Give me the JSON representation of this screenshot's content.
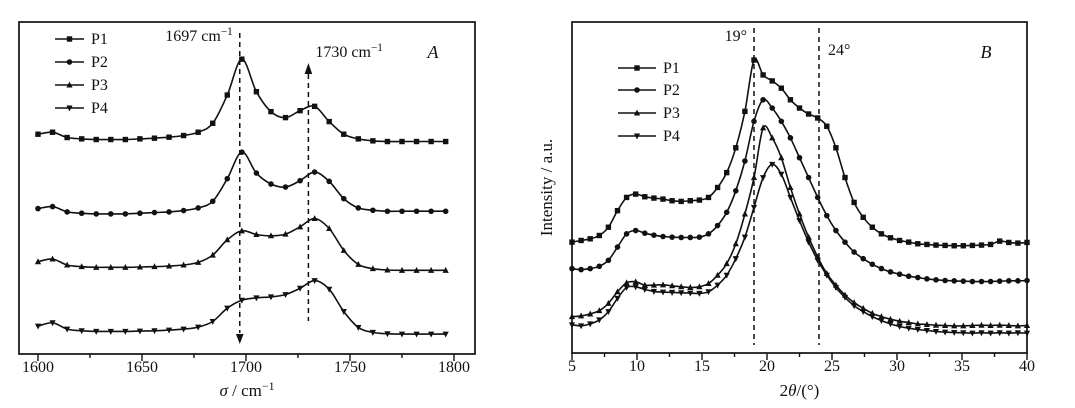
{
  "figure": {
    "background": "#ffffff",
    "ink": "#111111"
  },
  "chart_data": [
    {
      "type": "line",
      "panel_label": "A",
      "title": "",
      "xlabel_segments": [
        {
          "t": "σ",
          "italic": true
        },
        {
          "t": " / cm"
        },
        {
          "t": "−1",
          "sup": true
        }
      ],
      "ylabel_segments": [],
      "x_min": 1600,
      "x_max": 1800,
      "x_major_tick_values": [
        1600,
        1650,
        1700,
        1750,
        1800
      ],
      "x_major_tick_labels": [
        "1600",
        "1650",
        "1700",
        "1750",
        "1800"
      ],
      "x_minor_tick_values": [
        1625,
        1675,
        1725,
        1775
      ],
      "y_axis_visible_ticks": "none (intensity in arbitrary units, curves vertically offset)",
      "legend_position": "top-left-inside",
      "grid": false,
      "legend": [
        {
          "label": "P1",
          "marker": "square"
        },
        {
          "label": "P2",
          "marker": "circle"
        },
        {
          "label": "P3",
          "marker": "triangle-up"
        },
        {
          "label": "P4",
          "marker": "triangle-down"
        }
      ],
      "annotations": [
        {
          "x": 1697,
          "segments": [
            {
              "t": "1697 cm"
            },
            {
              "t": "−1",
              "sup": true
            }
          ],
          "arrow": "down",
          "label_side": "left"
        },
        {
          "x": 1730,
          "segments": [
            {
              "t": "1730 cm"
            },
            {
              "t": "−1",
              "sup": true
            }
          ],
          "arrow": "up",
          "label_side": "right"
        }
      ],
      "series": [
        {
          "name": "P1",
          "marker": "square",
          "x_start": 1600,
          "x_step": 7,
          "y": [
            0.662,
            0.668,
            0.652,
            0.648,
            0.646,
            0.646,
            0.646,
            0.648,
            0.65,
            0.653,
            0.658,
            0.668,
            0.695,
            0.78,
            0.888,
            0.79,
            0.73,
            0.712,
            0.733,
            0.746,
            0.7,
            0.662,
            0.648,
            0.642,
            0.64,
            0.64,
            0.64,
            0.64,
            0.64
          ]
        },
        {
          "name": "P2",
          "marker": "circle",
          "x_start": 1600,
          "x_step": 7,
          "y": [
            0.438,
            0.444,
            0.428,
            0.424,
            0.422,
            0.422,
            0.422,
            0.424,
            0.426,
            0.428,
            0.432,
            0.44,
            0.46,
            0.528,
            0.608,
            0.545,
            0.512,
            0.503,
            0.522,
            0.548,
            0.52,
            0.468,
            0.44,
            0.433,
            0.43,
            0.43,
            0.43,
            0.43,
            0.43
          ]
        },
        {
          "name": "P3",
          "marker": "triangle-up",
          "x_start": 1600,
          "x_step": 7,
          "y": [
            0.278,
            0.286,
            0.268,
            0.263,
            0.261,
            0.261,
            0.261,
            0.262,
            0.263,
            0.265,
            0.268,
            0.276,
            0.298,
            0.344,
            0.371,
            0.36,
            0.356,
            0.361,
            0.383,
            0.408,
            0.378,
            0.312,
            0.27,
            0.257,
            0.253,
            0.252,
            0.252,
            0.252,
            0.252
          ]
        },
        {
          "name": "P4",
          "marker": "triangle-down",
          "x_start": 1600,
          "x_step": 7,
          "y": [
            0.084,
            0.094,
            0.075,
            0.07,
            0.068,
            0.068,
            0.068,
            0.069,
            0.07,
            0.072,
            0.075,
            0.081,
            0.098,
            0.138,
            0.162,
            0.169,
            0.172,
            0.179,
            0.198,
            0.221,
            0.195,
            0.128,
            0.08,
            0.065,
            0.061,
            0.06,
            0.06,
            0.06,
            0.06
          ]
        }
      ]
    },
    {
      "type": "line",
      "panel_label": "B",
      "title": "",
      "xlabel_segments": [
        {
          "t": "2"
        },
        {
          "t": "θ",
          "italic": true
        },
        {
          "t": "/(°)"
        }
      ],
      "ylabel_segments": [
        {
          "t": "Intensity / a.u."
        }
      ],
      "x_min": 5,
      "x_max": 40,
      "x_major_tick_values": [
        5,
        10,
        15,
        20,
        25,
        30,
        35,
        40
      ],
      "x_major_tick_labels": [
        "5",
        "10",
        "15",
        "20",
        "25",
        "30",
        "35",
        "40"
      ],
      "x_minor_tick_values": [
        7.5,
        12.5,
        17.5,
        22.5,
        27.5,
        32.5,
        37.5
      ],
      "y_axis_visible_ticks": "none (intensity in arbitrary units, curves vertically offset)",
      "legend_position": "upper-left-inside",
      "grid": false,
      "legend": [
        {
          "label": "P1",
          "marker": "square"
        },
        {
          "label": "P2",
          "marker": "circle"
        },
        {
          "label": "P3",
          "marker": "triangle-up"
        },
        {
          "label": "P4",
          "marker": "triangle-down"
        }
      ],
      "annotations": [
        {
          "x": 19,
          "segments": [
            {
              "t": "19°"
            }
          ],
          "arrow": "none",
          "label_side": "left"
        },
        {
          "x": 24,
          "segments": [
            {
              "t": "24°"
            }
          ],
          "arrow": "none",
          "label_side": "right"
        }
      ],
      "series": [
        {
          "name": "P1",
          "marker": "square",
          "x_start": 5,
          "x_step": 0.7,
          "y": [
            0.335,
            0.34,
            0.345,
            0.355,
            0.38,
            0.43,
            0.47,
            0.48,
            0.472,
            0.468,
            0.465,
            0.46,
            0.458,
            0.46,
            0.462,
            0.47,
            0.5,
            0.545,
            0.62,
            0.73,
            0.885,
            0.84,
            0.822,
            0.8,
            0.765,
            0.74,
            0.722,
            0.71,
            0.685,
            0.62,
            0.53,
            0.455,
            0.41,
            0.38,
            0.36,
            0.348,
            0.34,
            0.335,
            0.33,
            0.328,
            0.326,
            0.325,
            0.324,
            0.324,
            0.325,
            0.326,
            0.328,
            0.338,
            0.334,
            0.332,
            0.334
          ]
        },
        {
          "name": "P2",
          "marker": "circle",
          "x_start": 5,
          "x_step": 0.7,
          "y": [
            0.255,
            0.252,
            0.255,
            0.262,
            0.28,
            0.32,
            0.36,
            0.37,
            0.362,
            0.356,
            0.352,
            0.35,
            0.349,
            0.349,
            0.35,
            0.36,
            0.385,
            0.425,
            0.49,
            0.58,
            0.7,
            0.765,
            0.74,
            0.7,
            0.65,
            0.59,
            0.53,
            0.47,
            0.415,
            0.37,
            0.335,
            0.305,
            0.285,
            0.268,
            0.255,
            0.245,
            0.238,
            0.232,
            0.228,
            0.224,
            0.221,
            0.219,
            0.218,
            0.217,
            0.216,
            0.216,
            0.216,
            0.217,
            0.218,
            0.218,
            0.219
          ]
        },
        {
          "name": "P3",
          "marker": "triangle-up",
          "x_start": 5,
          "x_step": 0.7,
          "y": [
            0.11,
            0.112,
            0.118,
            0.128,
            0.15,
            0.185,
            0.212,
            0.215,
            0.205,
            0.205,
            0.206,
            0.203,
            0.2,
            0.198,
            0.2,
            0.21,
            0.235,
            0.27,
            0.33,
            0.42,
            0.53,
            0.68,
            0.65,
            0.59,
            0.5,
            0.42,
            0.35,
            0.29,
            0.24,
            0.205,
            0.175,
            0.152,
            0.135,
            0.12,
            0.11,
            0.102,
            0.096,
            0.092,
            0.088,
            0.086,
            0.084,
            0.083,
            0.082,
            0.082,
            0.083,
            0.084,
            0.083,
            0.084,
            0.083,
            0.082,
            0.083
          ]
        },
        {
          "name": "P4",
          "marker": "triangle-down",
          "x_start": 5,
          "x_step": 0.7,
          "y": [
            0.085,
            0.082,
            0.088,
            0.1,
            0.125,
            0.165,
            0.198,
            0.2,
            0.192,
            0.186,
            0.184,
            0.183,
            0.182,
            0.181,
            0.18,
            0.185,
            0.205,
            0.235,
            0.285,
            0.35,
            0.44,
            0.53,
            0.57,
            0.54,
            0.47,
            0.4,
            0.335,
            0.28,
            0.235,
            0.198,
            0.168,
            0.143,
            0.125,
            0.11,
            0.098,
            0.088,
            0.08,
            0.075,
            0.071,
            0.068,
            0.065,
            0.063,
            0.062,
            0.061,
            0.06,
            0.061,
            0.06,
            0.061,
            0.06,
            0.061,
            0.06
          ]
        }
      ]
    }
  ]
}
